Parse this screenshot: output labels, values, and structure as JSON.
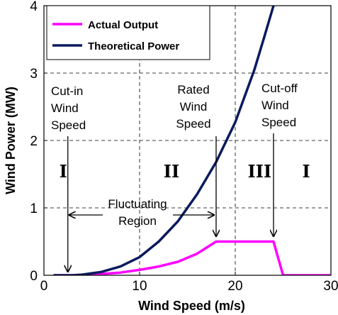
{
  "chart_data": {
    "type": "line",
    "xlabel": "Wind Speed (m/s)",
    "ylabel": "Wind Power (MW)",
    "xlim": [
      0,
      30
    ],
    "ylim": [
      0,
      4
    ],
    "xticks": [
      "0",
      "10",
      "20",
      "30"
    ],
    "yticks": [
      "0",
      "1",
      "2",
      "3",
      "4"
    ],
    "grid": "dashed",
    "legend_position": "top-left",
    "series": [
      {
        "name": "Actual Output",
        "color": "#ff00ff",
        "x": [
          1,
          3,
          6,
          8,
          10,
          12,
          14,
          16,
          18,
          20,
          22,
          24,
          25,
          27,
          30
        ],
        "y": [
          0,
          0,
          0.02,
          0.04,
          0.08,
          0.13,
          0.2,
          0.32,
          0.5,
          0.5,
          0.5,
          0.5,
          0,
          0,
          0
        ]
      },
      {
        "name": "Theoretical Power",
        "color": "#0a1a5e",
        "x": [
          1,
          3,
          4,
          6,
          8,
          10,
          12,
          14,
          16,
          18,
          20,
          22,
          23,
          24
        ],
        "y": [
          0,
          0,
          0.01,
          0.05,
          0.13,
          0.27,
          0.5,
          0.8,
          1.2,
          1.68,
          2.27,
          3.05,
          3.52,
          4.0
        ]
      }
    ],
    "annotations": {
      "cut_in": [
        "Cut-in",
        "Wind",
        "Speed"
      ],
      "rated": [
        "Rated",
        "Wind",
        "Speed"
      ],
      "cut_off": [
        "Cut-off",
        "Wind",
        "Speed"
      ],
      "fluctuating": [
        "Fluctuating",
        "Region"
      ],
      "regions": [
        "I",
        "II",
        "III",
        "I"
      ]
    },
    "arrows": {
      "cut_in_x": 2.5,
      "rated_x": 18,
      "cut_off_x": 24,
      "fluctuating_from_x": 2.5,
      "fluctuating_to_x": 18
    },
    "vlines_dashed": [
      10,
      20
    ]
  }
}
